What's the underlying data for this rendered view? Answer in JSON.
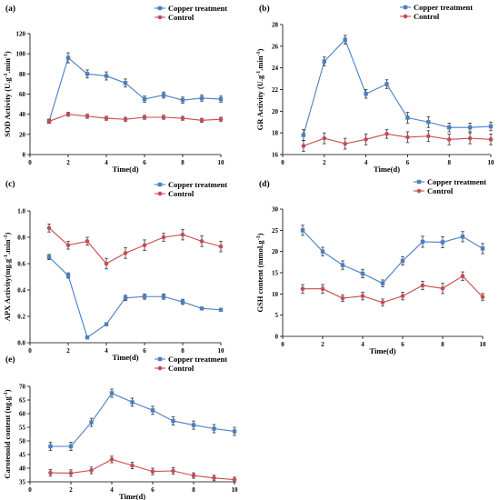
{
  "colors": {
    "copper": "#4a7fc4",
    "control": "#c94a4f",
    "axis": "#000000",
    "errorbar": "#333333"
  },
  "chart_data": [
    {
      "type": "line",
      "panel": "(a)",
      "xlabel": "Time(d)",
      "ylabel": "SOD Activity (U.g-1.min-1)",
      "xlim": [
        0,
        10
      ],
      "ylim": [
        0,
        120
      ],
      "xticks": [
        0,
        2,
        4,
        6,
        8,
        10
      ],
      "yticks": [
        0,
        20,
        40,
        60,
        80,
        100,
        120
      ],
      "legend": "top-right",
      "x": [
        1,
        2,
        3,
        4,
        5,
        6,
        7,
        8,
        9,
        10
      ],
      "series": [
        {
          "name": "Copper treatment",
          "values": [
            33,
            96,
            80,
            78,
            71,
            55,
            59,
            54,
            56,
            55
          ],
          "errors": [
            2,
            5,
            4,
            4,
            4,
            3,
            3,
            3,
            3,
            3
          ]
        },
        {
          "name": "Control",
          "values": [
            33,
            40,
            38,
            36,
            35,
            37,
            37,
            36,
            34,
            35
          ],
          "errors": [
            2,
            2,
            2,
            2,
            2,
            2,
            2,
            2,
            2,
            2
          ]
        }
      ]
    },
    {
      "type": "line",
      "panel": "(b)",
      "xlabel": "Time(d)",
      "ylabel": "GR Activity (U.g-1.min-1)",
      "xlim": [
        0,
        10
      ],
      "ylim": [
        16,
        28
      ],
      "xticks": [
        0,
        2,
        4,
        6,
        8,
        10
      ],
      "yticks": [
        16,
        18,
        20,
        22,
        24,
        26,
        28
      ],
      "legend": "top-right",
      "x": [
        1,
        2,
        3,
        4,
        5,
        6,
        7,
        8,
        9,
        10
      ],
      "series": [
        {
          "name": "Copper treatment",
          "values": [
            17.8,
            24.6,
            26.6,
            21.6,
            22.5,
            19.4,
            19.0,
            18.5,
            18.5,
            18.6
          ],
          "errors": [
            0.5,
            0.4,
            0.4,
            0.4,
            0.4,
            0.5,
            0.5,
            0.4,
            0.4,
            0.4
          ]
        },
        {
          "name": "Control",
          "values": [
            16.8,
            17.5,
            17.0,
            17.4,
            17.9,
            17.6,
            17.7,
            17.4,
            17.5,
            17.4
          ],
          "errors": [
            0.5,
            0.5,
            0.5,
            0.5,
            0.4,
            0.5,
            0.5,
            0.5,
            0.5,
            0.5
          ]
        }
      ]
    },
    {
      "type": "line",
      "panel": "(c)",
      "xlabel": "Time(d)",
      "ylabel": "APX Activity(mg.g-1.min-1)",
      "xlim": [
        0,
        10
      ],
      "ylim": [
        0.0,
        1.0
      ],
      "xticks": [
        0,
        2,
        4,
        6,
        8,
        10
      ],
      "yticks": [
        "0.0",
        "0.2",
        "0.4",
        "0.6",
        "0.8",
        "1.0"
      ],
      "legend": "top-right",
      "x": [
        1,
        2,
        3,
        4,
        5,
        6,
        7,
        8,
        9,
        10
      ],
      "series": [
        {
          "name": "Copper treatment",
          "values": [
            0.65,
            0.51,
            0.04,
            0.14,
            0.34,
            0.35,
            0.35,
            0.31,
            0.26,
            0.25
          ],
          "errors": [
            0.02,
            0.02,
            0.01,
            0.01,
            0.02,
            0.02,
            0.02,
            0.02,
            0.01,
            0.01
          ]
        },
        {
          "name": "Control",
          "values": [
            0.87,
            0.74,
            0.77,
            0.6,
            0.68,
            0.74,
            0.8,
            0.82,
            0.77,
            0.73
          ],
          "errors": [
            0.03,
            0.03,
            0.03,
            0.04,
            0.04,
            0.04,
            0.03,
            0.04,
            0.04,
            0.04
          ]
        }
      ]
    },
    {
      "type": "line",
      "panel": "(d)",
      "xlabel": "Time(d)",
      "ylabel": "GSH content (mmol.g-1)",
      "xlim": [
        0,
        10
      ],
      "ylim": [
        0,
        30
      ],
      "xticks": [
        0,
        2,
        4,
        6,
        8,
        10
      ],
      "yticks": [
        0,
        5,
        10,
        15,
        20,
        25,
        30
      ],
      "legend": "top-right",
      "x": [
        1,
        2,
        3,
        4,
        5,
        6,
        7,
        8,
        9,
        10
      ],
      "series": [
        {
          "name": "Copper treatment",
          "values": [
            25.0,
            20.0,
            16.8,
            14.8,
            12.5,
            17.8,
            22.3,
            22.2,
            23.5,
            20.7
          ],
          "errors": [
            1.2,
            1.0,
            1.0,
            1.0,
            0.8,
            1.0,
            1.3,
            1.3,
            1.2,
            1.2
          ]
        },
        {
          "name": "Control",
          "values": [
            11.2,
            11.2,
            9.0,
            9.5,
            8.0,
            9.5,
            12.0,
            11.3,
            14.2,
            9.3
          ],
          "errors": [
            1.0,
            1.0,
            0.8,
            0.9,
            0.8,
            0.9,
            1.0,
            1.2,
            1.0,
            0.8
          ]
        }
      ]
    },
    {
      "type": "line",
      "panel": "(e)",
      "xlabel": "Time(d)",
      "ylabel": "Carotenoid content (ug.g-1)",
      "xlim": [
        0,
        10
      ],
      "ylim": [
        35,
        70
      ],
      "xticks": [
        0,
        2,
        4,
        6,
        8,
        10
      ],
      "yticks": [
        35,
        40,
        45,
        50,
        55,
        60,
        65,
        70
      ],
      "legend": "top-right",
      "x": [
        1,
        2,
        3,
        4,
        5,
        6,
        7,
        8,
        9,
        10
      ],
      "series": [
        {
          "name": "Copper treatment",
          "values": [
            48.0,
            48.0,
            56.8,
            67.5,
            64.2,
            61.2,
            57.3,
            55.8,
            54.5,
            53.5
          ],
          "errors": [
            1.5,
            1.5,
            1.5,
            1.5,
            1.5,
            1.5,
            1.5,
            1.5,
            1.5,
            1.5
          ]
        },
        {
          "name": "Control",
          "values": [
            38.3,
            38.2,
            39.2,
            43.2,
            41.0,
            38.8,
            39.0,
            37.3,
            36.4,
            35.8
          ],
          "errors": [
            1.2,
            1.2,
            1.2,
            1.2,
            1.2,
            1.2,
            1.2,
            1.0,
            1.0,
            0.9
          ]
        }
      ]
    }
  ]
}
